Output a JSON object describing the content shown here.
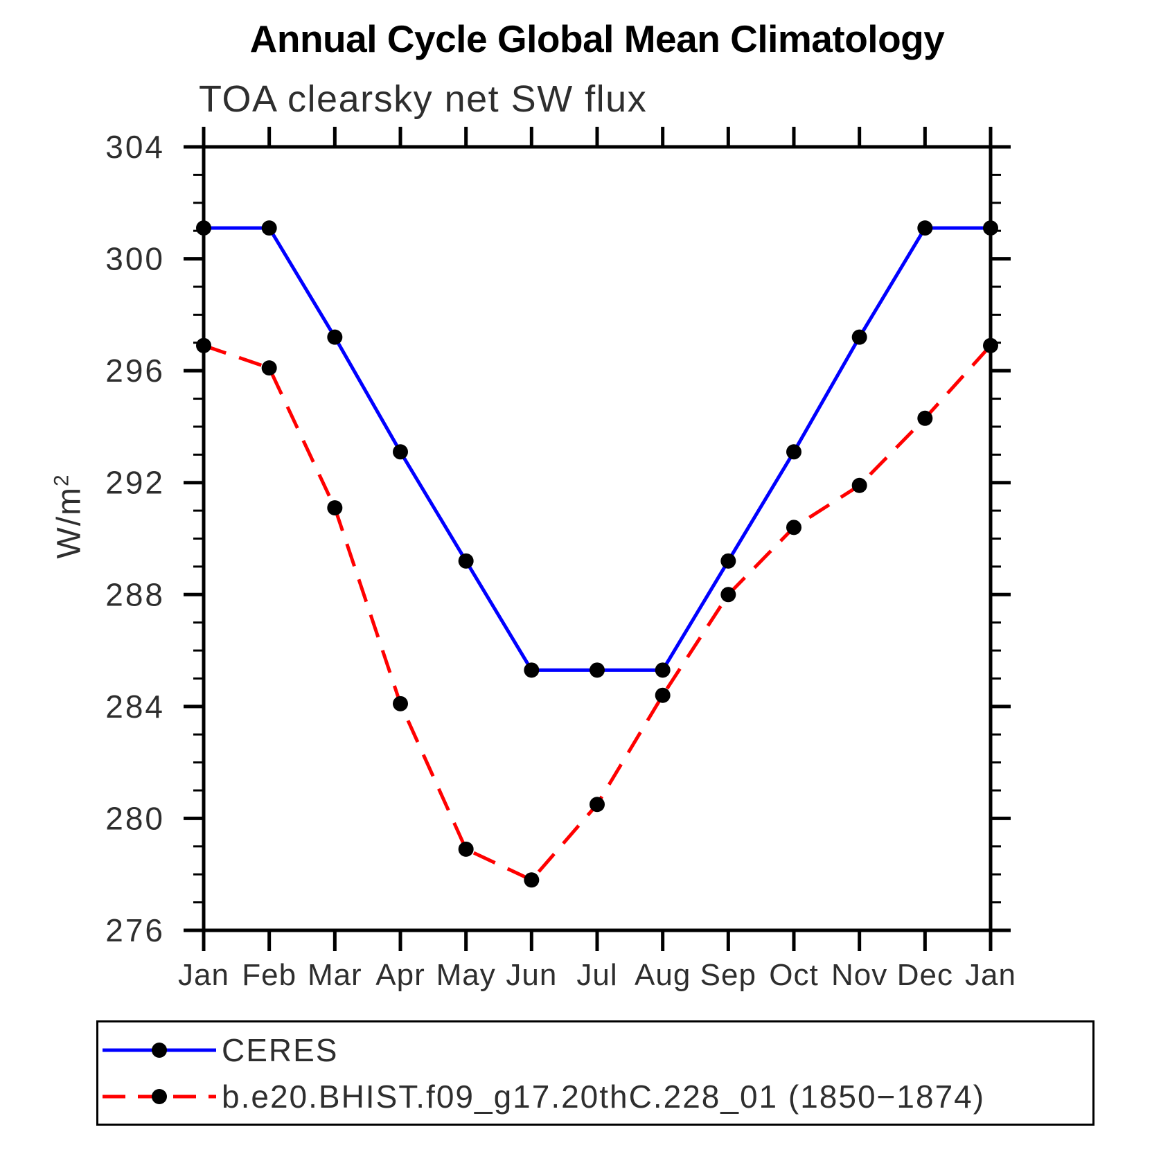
{
  "chart": {
    "title": "Annual Cycle Global Mean Climatology",
    "subtitle": "TOA clearsky net SW flux",
    "ylabel_base": "W/m",
    "ylabel_exp": "2"
  },
  "chart_data": {
    "type": "line",
    "title": "Annual Cycle Global Mean Climatology",
    "subtitle": "TOA clearsky net SW flux",
    "ylabel": "W/m²",
    "x_categories": [
      "Jan",
      "Feb",
      "Mar",
      "Apr",
      "May",
      "Jun",
      "Jul",
      "Aug",
      "Sep",
      "Oct",
      "Nov",
      "Dec",
      "Jan"
    ],
    "ylim": [
      276,
      304
    ],
    "y_ticks": [
      276,
      280,
      284,
      288,
      292,
      296,
      300,
      304
    ],
    "ytick_minor_step": 1,
    "grid": false,
    "legend_position": "bottom",
    "axis_color": "#000000",
    "series": [
      {
        "name": "CERES",
        "color": "#0000ff",
        "line_style": "solid",
        "marker": "circle",
        "marker_color": "#000000",
        "values": [
          301.1,
          301.1,
          297.2,
          293.1,
          289.2,
          285.3,
          285.3,
          285.3,
          289.2,
          293.1,
          297.2,
          301.1,
          301.1
        ]
      },
      {
        "name": "b.e20.BHIST.f09_g17.20thC.228_01 (1850−1874)",
        "color": "#ff0000",
        "line_style": "dashed",
        "marker": "circle",
        "marker_color": "#000000",
        "values": [
          296.9,
          296.1,
          291.1,
          284.1,
          278.9,
          277.8,
          280.5,
          284.4,
          288.0,
          290.4,
          291.9,
          294.3,
          296.9
        ]
      }
    ]
  }
}
